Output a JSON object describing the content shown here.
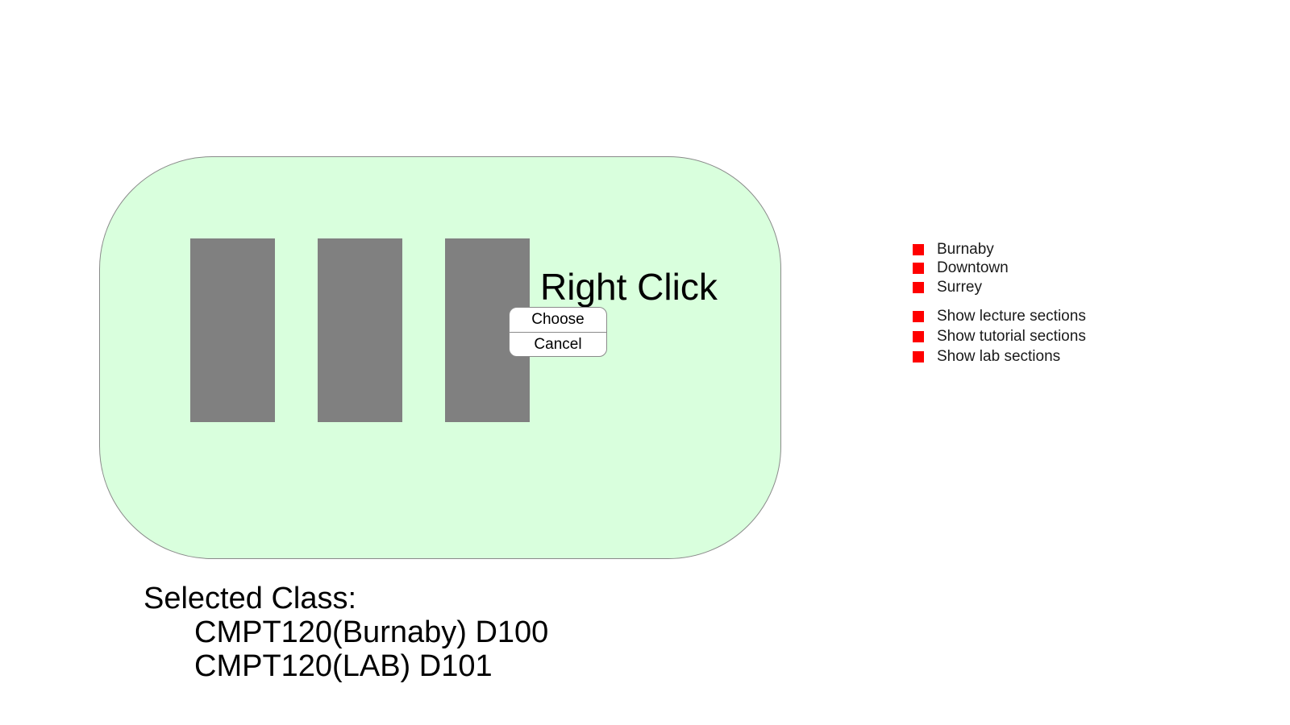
{
  "canvas": {
    "hint_text": "Right Click"
  },
  "context_menu": {
    "items": [
      {
        "label": "Choose"
      },
      {
        "label": "Cancel"
      }
    ]
  },
  "legend": {
    "campuses": [
      {
        "label": "Burnaby"
      },
      {
        "label": "Downtown"
      },
      {
        "label": "Surrey"
      }
    ],
    "sections": [
      {
        "label": "Show lecture sections"
      },
      {
        "label": "Show tutorial sections"
      },
      {
        "label": "Show lab sections"
      }
    ],
    "marker_color": "#ff0000"
  },
  "selected": {
    "heading": "Selected Class:",
    "classes": [
      "CMPT120(Burnaby) D100",
      "CMPT120(LAB) D101"
    ]
  },
  "colors": {
    "panel_background": "#d9ffdd",
    "class_block": "#808080"
  }
}
